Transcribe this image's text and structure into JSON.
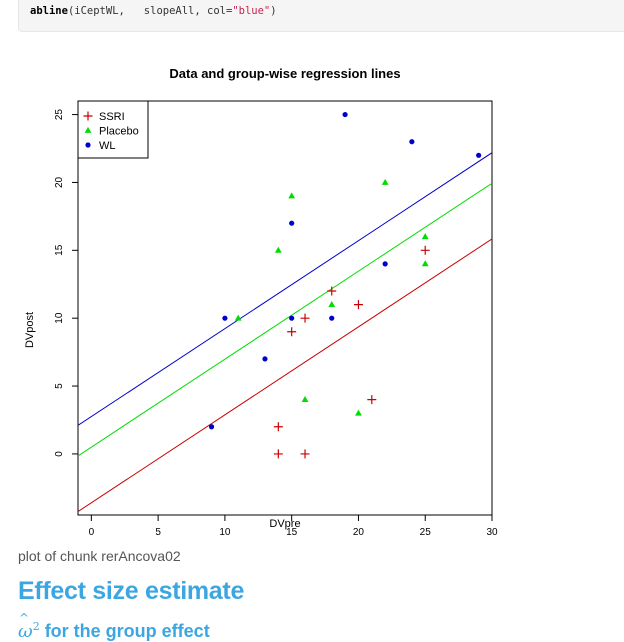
{
  "code": {
    "fn": "abline",
    "args_plain": "(iCeptWL,   slopeAll, col=",
    "arg_string": "\"blue\"",
    "close": ")"
  },
  "caption": "plot of chunk rerAncova02",
  "section_heading": "Effect size estimate",
  "subheading": {
    "symbol": "ω",
    "hat": "^",
    "exponent": "2",
    "text": " for the group effect"
  },
  "chart_data": {
    "type": "scatter",
    "title": "Data and group-wise regression lines",
    "xlabel": "DVpre",
    "ylabel": "DVpost",
    "xlim": [
      -1,
      30
    ],
    "ylim": [
      -4.5,
      26
    ],
    "xticks": [
      0,
      5,
      10,
      15,
      20,
      25,
      30
    ],
    "yticks": [
      0,
      5,
      10,
      15,
      20,
      25
    ],
    "legend_position": "top-left",
    "series": [
      {
        "name": "SSRI",
        "marker": "plus",
        "color": "#cc0000",
        "points": [
          [
            14,
            2
          ],
          [
            14,
            0
          ],
          [
            15,
            9
          ],
          [
            16,
            10
          ],
          [
            16,
            0
          ],
          [
            18,
            12
          ],
          [
            20,
            11
          ],
          [
            21,
            4
          ],
          [
            25,
            15
          ]
        ]
      },
      {
        "name": "Placebo",
        "marker": "triangle",
        "color": "#00dd00",
        "points": [
          [
            11,
            10
          ],
          [
            14,
            15
          ],
          [
            15,
            19
          ],
          [
            16,
            4
          ],
          [
            18,
            11
          ],
          [
            20,
            3
          ],
          [
            22,
            20
          ],
          [
            25,
            16
          ],
          [
            25,
            14
          ]
        ]
      },
      {
        "name": "WL",
        "marker": "circle",
        "color": "#0000cc",
        "points": [
          [
            9,
            2
          ],
          [
            10,
            10
          ],
          [
            13,
            7
          ],
          [
            15,
            17
          ],
          [
            15,
            10
          ],
          [
            18,
            10
          ],
          [
            19,
            25
          ],
          [
            22,
            14
          ],
          [
            24,
            23
          ],
          [
            29,
            22
          ]
        ]
      }
    ],
    "lines": [
      {
        "series": "SSRI",
        "color": "#cc0000",
        "intercept": -3.6,
        "slope": 0.648
      },
      {
        "series": "Placebo",
        "color": "#00dd00",
        "intercept": 0.5,
        "slope": 0.648
      },
      {
        "series": "WL",
        "color": "#0000cc",
        "intercept": 2.75,
        "slope": 0.648
      }
    ]
  }
}
